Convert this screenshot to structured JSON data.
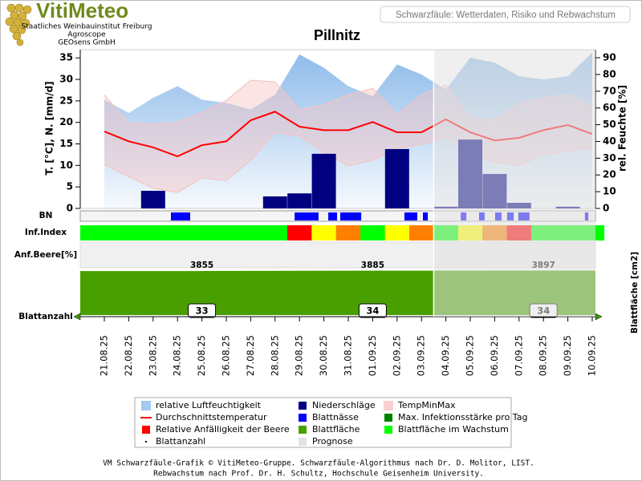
{
  "header": {
    "logo": "VitiMeteo",
    "orgs": [
      "Staatliches Weinbauinstitut Freiburg",
      "Agroscope",
      "GEOsens GmbH"
    ],
    "subtitle": "Schwarzfäule: Wetterdaten, Risiko und Rebwachstum"
  },
  "chart_data": {
    "type": "combo",
    "title": "Pillnitz",
    "categories": [
      "21.08.25",
      "22.08.25",
      "23.08.25",
      "24.08.25",
      "25.08.25",
      "26.08.25",
      "27.08.25",
      "28.08.25",
      "29.08.25",
      "30.08.25",
      "31.08.25",
      "01.09.25",
      "02.09.25",
      "03.09.25",
      "04.09.25",
      "05.09.25",
      "06.09.25",
      "07.09.25",
      "08.09.25",
      "09.09.25",
      "10.09.25"
    ],
    "ylabel": "T. [°C], N. [mm/d]",
    "y2label": "rel. Feuchte [%]",
    "y3label": "Blattfläche [cm2]",
    "ylim": [
      0,
      36.9
    ],
    "yticks": [
      0,
      5,
      10,
      15,
      20,
      25,
      30,
      35
    ],
    "y2lim": [
      0,
      94.8
    ],
    "y2ticks": [
      0,
      10,
      20,
      30,
      40,
      50,
      60,
      70,
      80,
      90
    ],
    "rows": [
      "BN",
      "Inf.Index",
      "Anf.Beere[%]",
      "Blattanzahl"
    ],
    "series": [
      {
        "name": "relative Luftfeuchtigkeit",
        "color": "#8fbbea",
        "marker": "area",
        "axis": "y2",
        "values": [
          65,
          57,
          66,
          73,
          65,
          63,
          59,
          68,
          92,
          84,
          73,
          67,
          86,
          80,
          71,
          90,
          87,
          79,
          77,
          79,
          93
        ]
      },
      {
        "name": "Durchschnittstemperatur",
        "color": "#ff0000",
        "marker": "line",
        "values": [
          17.9,
          15.6,
          14.2,
          12.1,
          14.7,
          15.6,
          20.5,
          22.5,
          19.0,
          18.2,
          18.2,
          20.1,
          17.7,
          17.7,
          20.7,
          17.7,
          15.8,
          16.4,
          18.2,
          19.4,
          17.3
        ]
      },
      {
        "name": "Relative Anfälligkeit der Beere",
        "color": "#ff0000",
        "marker": "square"
      },
      {
        "name": "Blattanzahl",
        "color": "#000000",
        "marker": "dot",
        "x": [
          "25.08.25",
          "01.09.25",
          "08.09.25"
        ],
        "values": [
          33,
          34,
          34
        ]
      },
      {
        "name": "Niederschläge",
        "color": "#000080",
        "marker": "square",
        "values": [
          0,
          0,
          4.1,
          0,
          0,
          0,
          0,
          2.8,
          3.5,
          12.7,
          0,
          0,
          13.8,
          0,
          0.4,
          16.0,
          8.0,
          1.3,
          0,
          0.4,
          0
        ]
      },
      {
        "name": "Blattnässe",
        "color": "#0000ff",
        "marker": "square",
        "intervals": [
          [
            2.73,
            3.52
          ],
          [
            7.8,
            8.78
          ],
          [
            9.18,
            9.54
          ],
          [
            9.67,
            10.53
          ],
          [
            12.3,
            12.83
          ],
          [
            13.06,
            13.26
          ],
          [
            14.61,
            14.84
          ],
          [
            15.36,
            15.59
          ],
          [
            16.02,
            16.28
          ],
          [
            16.51,
            16.78
          ],
          [
            16.97,
            17.43
          ],
          [
            19.7,
            19.84
          ]
        ]
      },
      {
        "name": "Blattfläche",
        "color": "#4a9f00",
        "marker": "square",
        "x": [
          "25.08.25",
          "01.09.25",
          "08.09.25"
        ],
        "values": [
          3855,
          3885,
          3897
        ]
      },
      {
        "name": "Prognose",
        "color": "#e2e2e2",
        "marker": "square",
        "from": "04.09.25"
      },
      {
        "name": "TempMinMax",
        "color": "#f6c4c4",
        "marker": "area",
        "min": [
          10.2,
          7.4,
          4.7,
          3.7,
          7.1,
          6.5,
          11.2,
          17.7,
          16.8,
          13.0,
          9.9,
          11.2,
          14.0,
          14.9,
          16.4,
          13.0,
          10.8,
          9.9,
          12.5,
          13.4,
          14.0
        ],
        "max": [
          26.4,
          19.9,
          19.6,
          19.9,
          22.3,
          25.1,
          29.8,
          29.4,
          22.9,
          24.2,
          26.4,
          27.9,
          21.8,
          26.4,
          28.7,
          21.0,
          20.5,
          24.2,
          25.7,
          26.4,
          23.6
        ]
      },
      {
        "name": "Max. Infektionsstärke pro Tag",
        "color": "#008000",
        "marker": "square",
        "levels": [
          0,
          0,
          0,
          0,
          0,
          0,
          0,
          0,
          3,
          1,
          2,
          0,
          1,
          2,
          0,
          1,
          2,
          3,
          0,
          0,
          0
        ],
        "level_colors": [
          "#00ff00",
          "#ffff00",
          "#ff8000",
          "#ff0000"
        ]
      },
      {
        "name": "Blattfläche im Wachstum",
        "color": "#00ff00",
        "marker": "square"
      }
    ]
  },
  "footer": [
    "VM Schwarzfäule-Grafik © VitiMeteo-Gruppe. Schwarzfäule-Algorithmus nach Dr. D. Molitor, LIST.",
    "Rebwachstum nach Prof. Dr. H. Schultz, Hochschule Geisenheim University."
  ]
}
